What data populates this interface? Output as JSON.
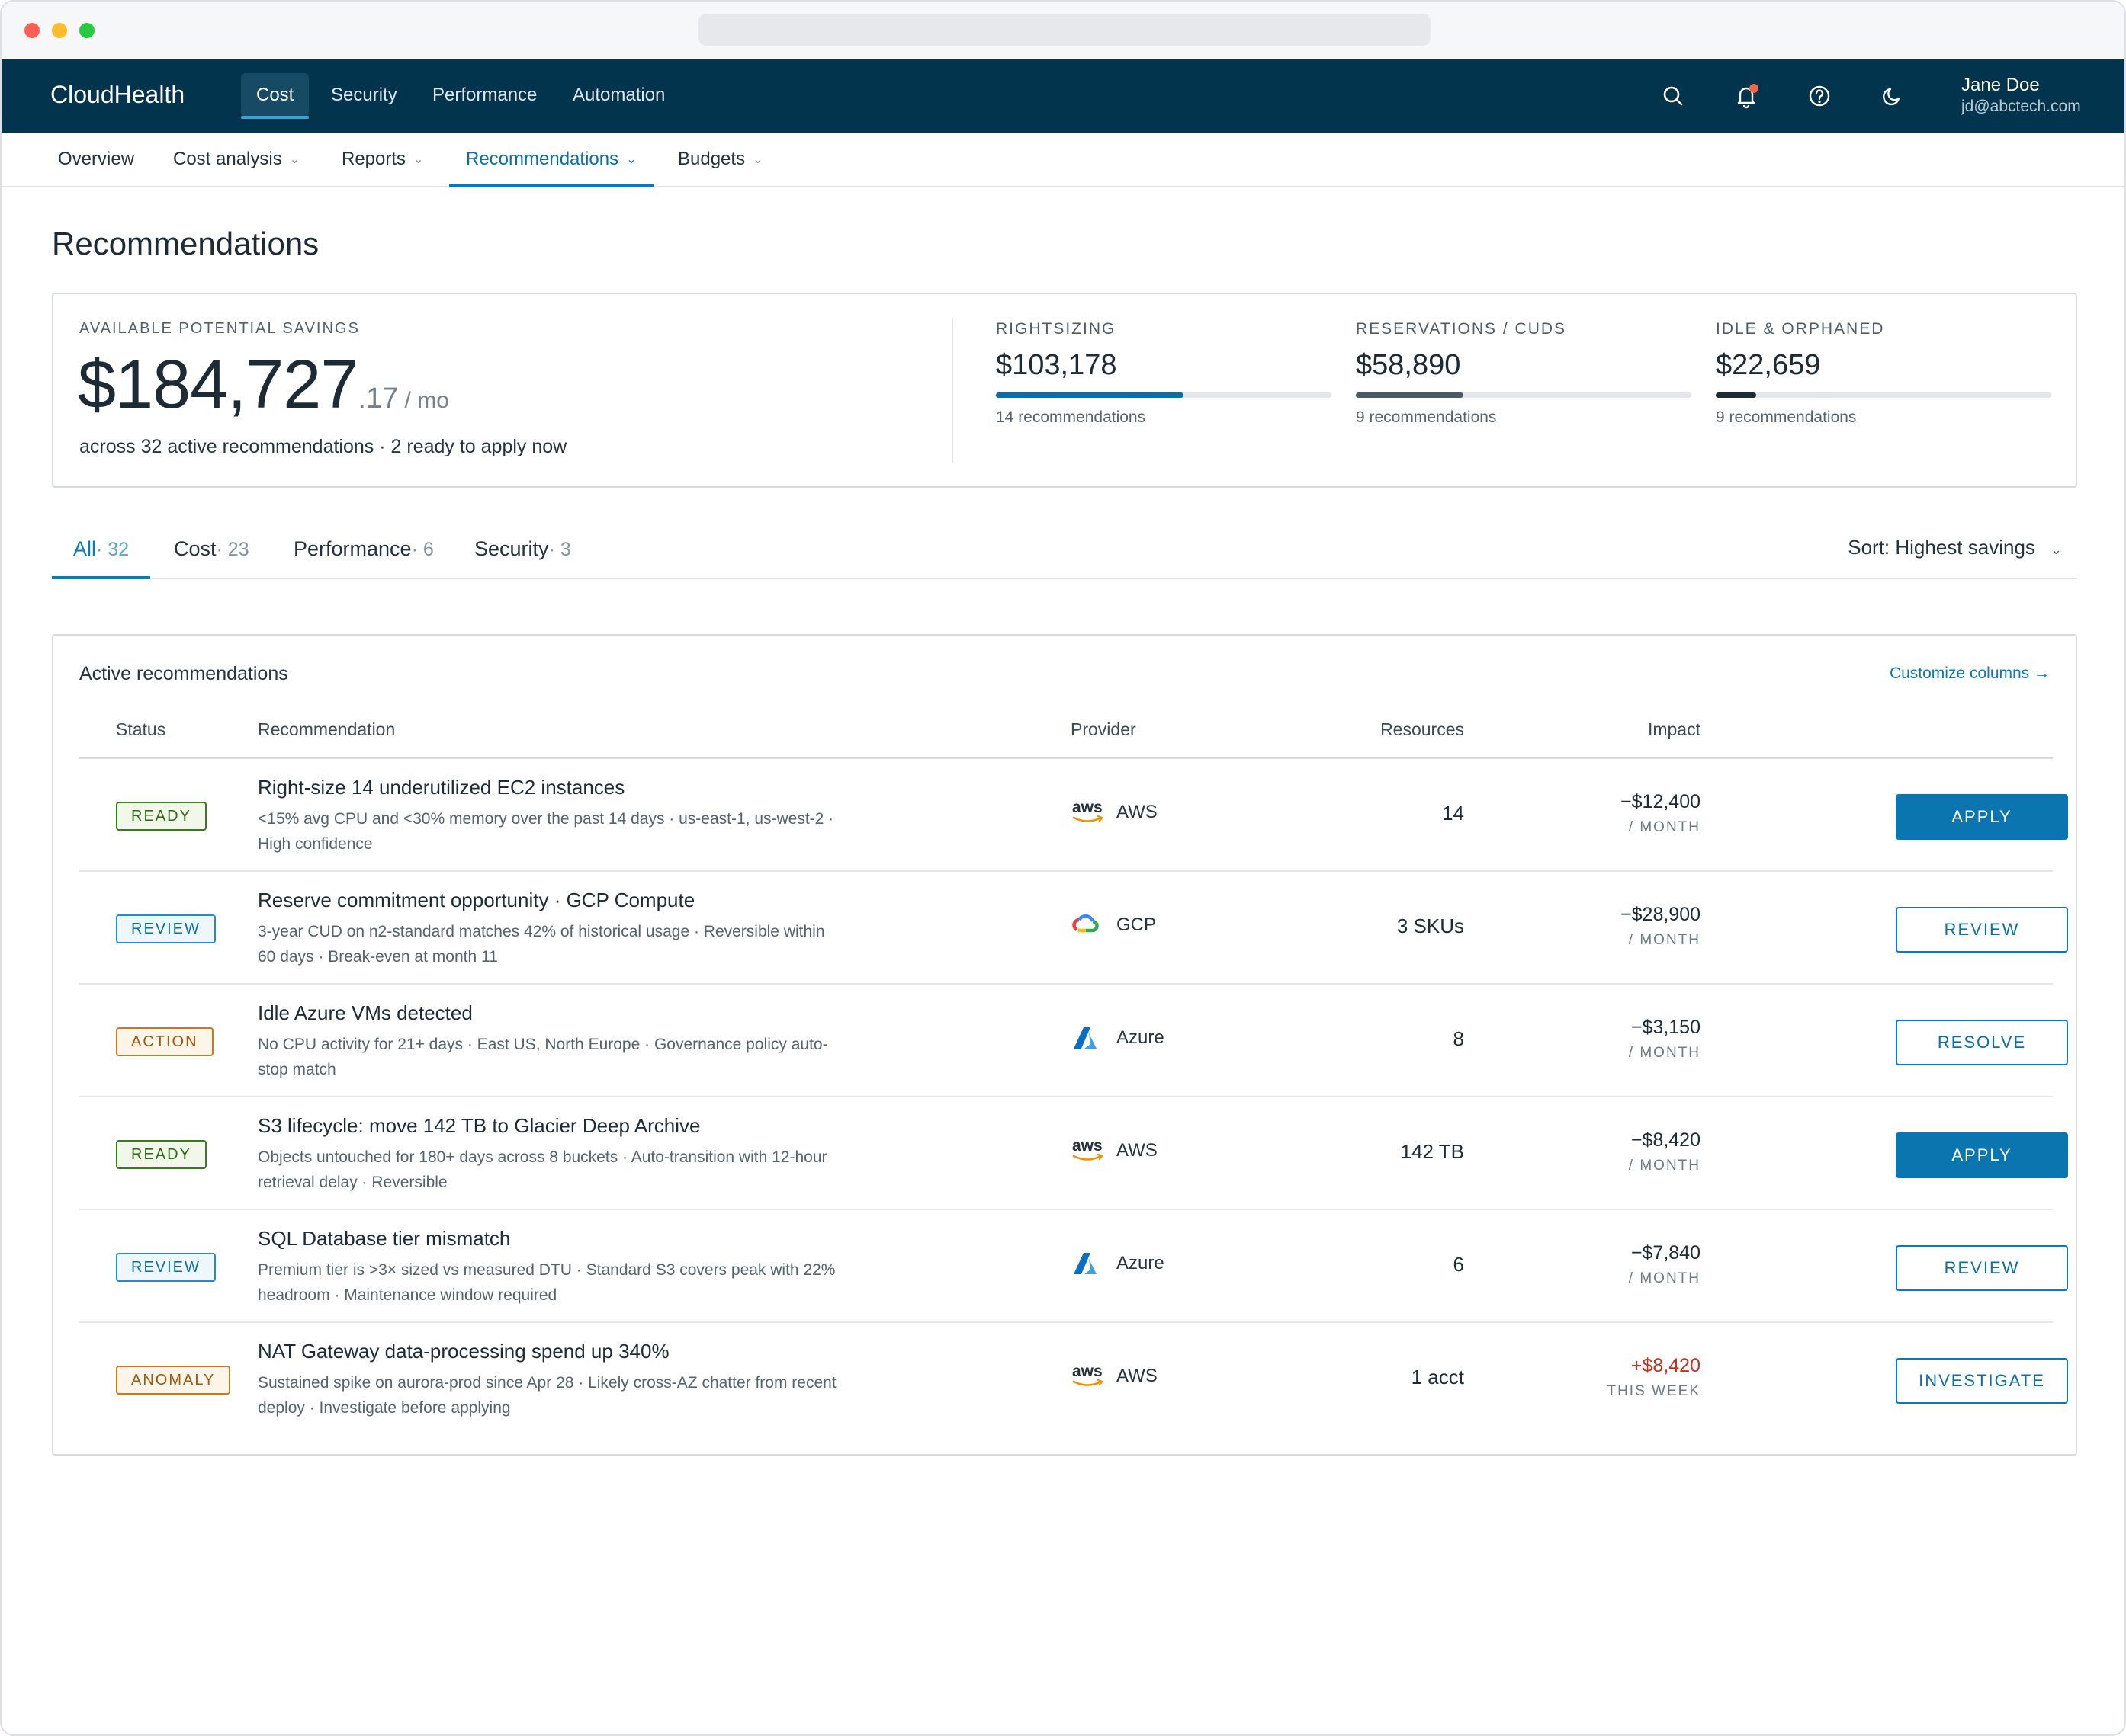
{
  "app": {
    "brand": "CloudHealth"
  },
  "topnav": {
    "tabs": [
      {
        "label": "Cost",
        "active": true
      },
      {
        "label": "Security",
        "active": false
      },
      {
        "label": "Performance",
        "active": false
      },
      {
        "label": "Automation",
        "active": false
      }
    ],
    "icons": [
      "search-icon",
      "bell-icon",
      "help-icon",
      "moon-icon"
    ],
    "user": {
      "name": "Jane Doe",
      "email": "jd@abctech.com"
    }
  },
  "subnav": {
    "tabs": [
      {
        "label": "Overview",
        "dropdown": false
      },
      {
        "label": "Cost analysis",
        "dropdown": true
      },
      {
        "label": "Reports",
        "dropdown": true
      },
      {
        "label": "Recommendations",
        "dropdown": true,
        "active": true
      },
      {
        "label": "Budgets",
        "dropdown": true
      }
    ]
  },
  "page": {
    "title": "Recommendations"
  },
  "savings": {
    "label": "AVAILABLE POTENTIAL SAVINGS",
    "amount": "$184,727",
    "cents": ".17",
    "period": " / mo",
    "subtitle": "across 32 active recommendations · 2 ready to apply now",
    "categories": [
      {
        "label": "RIGHTSIZING",
        "amount": "$103,178",
        "note": "14 recommendations",
        "share": 0.56,
        "color": "#0a6fa8"
      },
      {
        "label": "RESERVATIONS / CUDS",
        "amount": "$58,890",
        "note": "9 recommendations",
        "share": 0.32,
        "color": "#4a5a64"
      },
      {
        "label": "IDLE & ORPHANED",
        "amount": "$22,659",
        "note": "9 recommendations",
        "share": 0.12,
        "color": "#1d2b36"
      }
    ]
  },
  "filters": {
    "tabs": [
      {
        "label": "All",
        "count": "· 32",
        "active": true
      },
      {
        "label": "Cost",
        "count": "· 23"
      },
      {
        "label": "Performance",
        "count": "· 6"
      },
      {
        "label": "Security",
        "count": "· 3"
      }
    ],
    "sort": "Sort: Highest savings"
  },
  "table": {
    "title": "Active recommendations",
    "customize_link": "Customize columns →",
    "columns": {
      "status": "Status",
      "recommendation": "Recommendation",
      "provider": "Provider",
      "resources": "Resources",
      "impact": "Impact"
    },
    "rows": [
      {
        "status": "READY",
        "status_kind": "ready",
        "title": "Right-size 14 underutilized EC2 instances",
        "description": "<15% avg CPU and <30% memory over the past 14 days · us-east-1, us-west-2 · High confidence",
        "provider": "AWS",
        "provider_icon": "aws-logo",
        "resources": "14",
        "impact": "−$12,400",
        "impact_period": "/ MONTH",
        "impact_up": false,
        "action": "APPLY",
        "action_kind": "primary"
      },
      {
        "status": "REVIEW",
        "status_kind": "review",
        "title": "Reserve commitment opportunity · GCP Compute",
        "description": "3-year CUD on n2-standard matches 42% of historical usage · Reversible within 60 days · Break-even at month 11",
        "provider": "GCP",
        "provider_icon": "gcp-logo",
        "resources": "3 SKUs",
        "impact": "−$28,900",
        "impact_period": "/ MONTH",
        "impact_up": false,
        "action": "REVIEW",
        "action_kind": "secondary"
      },
      {
        "status": "ACTION",
        "status_kind": "action",
        "title": "Idle Azure VMs detected",
        "description": "No CPU activity for 21+ days · East US, North Europe · Governance policy auto-stop match",
        "provider": "Azure",
        "provider_icon": "azure-logo",
        "resources": "8",
        "impact": "−$3,150",
        "impact_period": "/ MONTH",
        "impact_up": false,
        "action": "RESOLVE",
        "action_kind": "secondary"
      },
      {
        "status": "READY",
        "status_kind": "ready",
        "title": "S3 lifecycle: move 142 TB to Glacier Deep Archive",
        "description": "Objects untouched for 180+ days across 8 buckets · Auto-transition with 12-hour retrieval delay · Reversible",
        "provider": "AWS",
        "provider_icon": "aws-logo",
        "resources": "142 TB",
        "impact": "−$8,420",
        "impact_period": "/ MONTH",
        "impact_up": false,
        "action": "APPLY",
        "action_kind": "primary"
      },
      {
        "status": "REVIEW",
        "status_kind": "review",
        "title": "SQL Database tier mismatch",
        "description": "Premium tier is >3× sized vs measured DTU · Standard S3 covers peak with 22% headroom · Maintenance window required",
        "provider": "Azure",
        "provider_icon": "azure-logo",
        "resources": "6",
        "impact": "−$7,840",
        "impact_period": "/ MONTH",
        "impact_up": false,
        "action": "REVIEW",
        "action_kind": "secondary"
      },
      {
        "status": "ANOMALY",
        "status_kind": "anomaly",
        "title": "NAT Gateway data-processing spend up 340%",
        "description": "Sustained spike on aurora-prod since Apr 28 · Likely cross-AZ chatter from recent deploy · Investigate before applying",
        "provider": "AWS",
        "provider_icon": "aws-logo",
        "resources": "1 acct",
        "impact": "+$8,420",
        "impact_period": "THIS WEEK",
        "impact_up": true,
        "action": "INVESTIGATE",
        "action_kind": "secondary"
      }
    ]
  }
}
